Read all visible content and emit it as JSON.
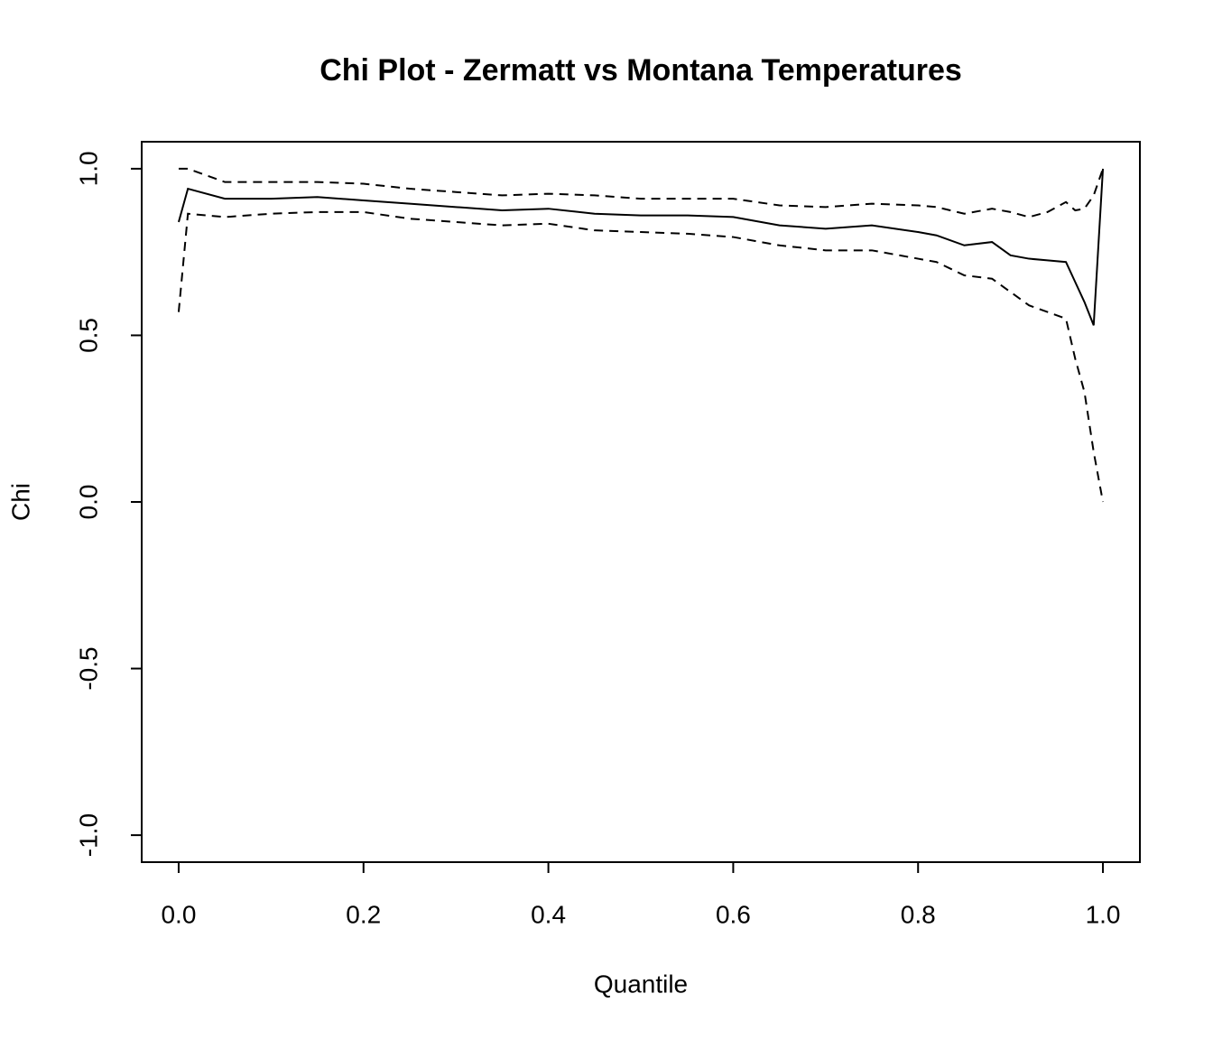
{
  "chart_data": {
    "type": "line",
    "title": "Chi Plot - Zermatt vs Montana Temperatures",
    "x_label": "Quantile",
    "y_label": "Chi",
    "x": [
      0,
      0.01,
      0.05,
      0.1,
      0.15,
      0.2,
      0.25,
      0.3,
      0.35,
      0.4,
      0.45,
      0.5,
      0.55,
      0.6,
      0.65,
      0.7,
      0.75,
      0.8,
      0.82,
      0.85,
      0.88,
      0.9,
      0.92,
      0.94,
      0.96,
      0.97,
      0.98,
      0.99,
      1.0
    ],
    "series": [
      {
        "color": "#000000",
        "dashed": false,
        "values": [
          0.84,
          0.94,
          0.91,
          0.91,
          0.915,
          0.905,
          0.895,
          0.885,
          0.875,
          0.88,
          0.865,
          0.86,
          0.86,
          0.855,
          0.83,
          0.82,
          0.83,
          0.81,
          0.8,
          0.77,
          0.78,
          0.74,
          0.73,
          0.725,
          0.72,
          0.66,
          0.6,
          0.53,
          1.0
        ]
      },
      {
        "color": "#000000",
        "dashed": true,
        "values": [
          1.0,
          1.0,
          0.96,
          0.96,
          0.96,
          0.955,
          0.94,
          0.93,
          0.92,
          0.925,
          0.92,
          0.91,
          0.91,
          0.91,
          0.89,
          0.885,
          0.895,
          0.89,
          0.885,
          0.865,
          0.88,
          0.87,
          0.855,
          0.87,
          0.9,
          0.875,
          0.88,
          0.92,
          1.0
        ]
      },
      {
        "color": "#000000",
        "dashed": true,
        "values": [
          0.57,
          0.865,
          0.855,
          0.865,
          0.87,
          0.87,
          0.85,
          0.84,
          0.83,
          0.835,
          0.815,
          0.81,
          0.805,
          0.795,
          0.77,
          0.755,
          0.755,
          0.73,
          0.72,
          0.68,
          0.67,
          0.63,
          0.59,
          0.57,
          0.55,
          0.43,
          0.33,
          0.15,
          0.0
        ]
      }
    ],
    "xlim": [
      -0.04,
      1.04
    ],
    "ylim": [
      -1.081,
      1.081
    ],
    "xticks": [
      {
        "value": 0,
        "label": "0.0"
      },
      0.2,
      0.4,
      0.6,
      0.8,
      {
        "value": 1,
        "label": "1.0"
      }
    ],
    "yticks": [
      {
        "value": -1,
        "label": "-1.0"
      },
      -0.5,
      {
        "value": 0,
        "label": "0.0"
      },
      0.5,
      {
        "value": 1,
        "label": "1.0"
      }
    ]
  }
}
